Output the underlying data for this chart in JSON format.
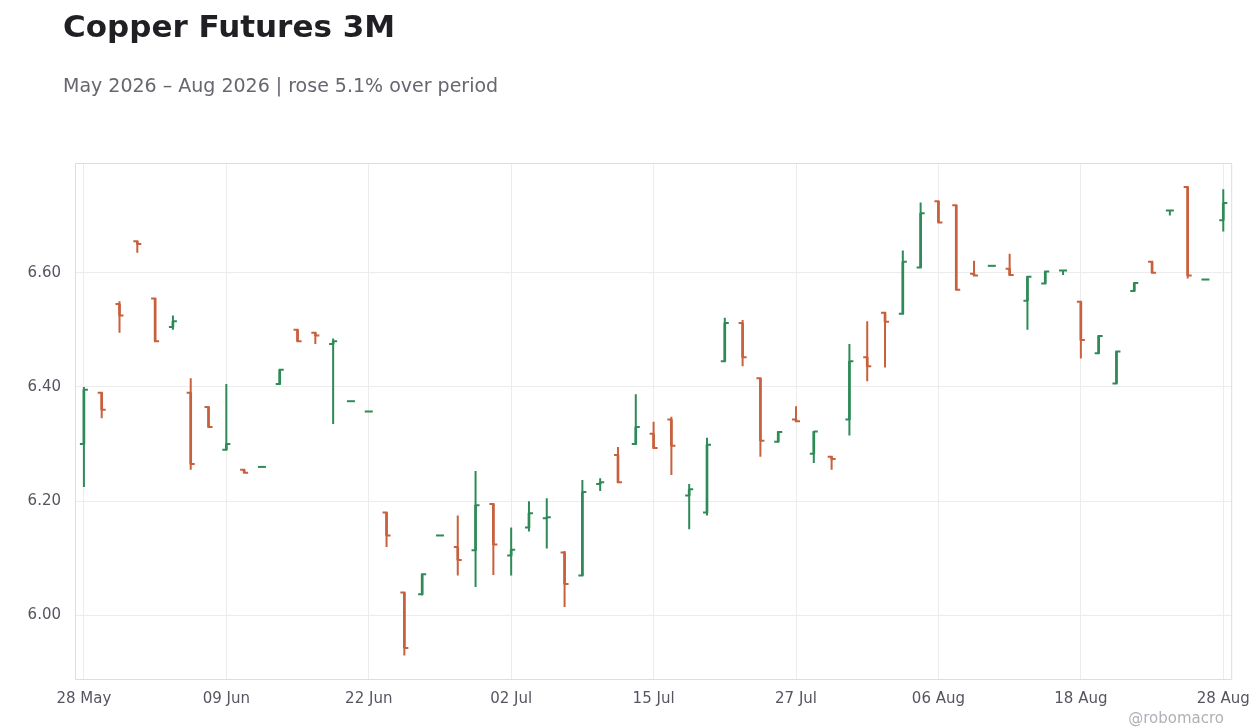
{
  "chart_data": {
    "type": "candlestick",
    "title": "Copper Futures 3M",
    "subtitle": "May 2026 – Aug 2026 | rose 5.1% over period",
    "annotations": [
      "@robomacro"
    ],
    "categories": [
      "28 May",
      null,
      null,
      null,
      null,
      null,
      null,
      null,
      "09 Jun",
      null,
      null,
      null,
      null,
      null,
      null,
      null,
      "22 Jun",
      null,
      null,
      null,
      null,
      null,
      null,
      null,
      "02 Jul",
      null,
      null,
      null,
      null,
      null,
      null,
      null,
      "15 Jul",
      null,
      null,
      null,
      null,
      null,
      null,
      null,
      "27 Jul",
      null,
      null,
      null,
      null,
      null,
      null,
      null,
      "06 Aug",
      null,
      null,
      null,
      null,
      null,
      null,
      null,
      "18 Aug",
      null,
      null,
      null,
      null,
      null,
      null,
      null,
      "28 Aug"
    ],
    "ohlc": [
      [
        6.3,
        6.4,
        6.225,
        6.395
      ],
      [
        6.39,
        6.39,
        6.345,
        6.36
      ],
      [
        6.545,
        6.55,
        6.495,
        6.525
      ],
      [
        6.655,
        6.655,
        6.635,
        6.65
      ],
      [
        6.555,
        6.555,
        6.48,
        6.48
      ],
      [
        6.505,
        6.525,
        6.5,
        6.515
      ],
      [
        6.39,
        6.415,
        6.255,
        6.265
      ],
      [
        6.365,
        6.365,
        6.33,
        6.33
      ],
      [
        6.29,
        6.405,
        6.29,
        6.3
      ],
      [
        6.255,
        6.255,
        6.248,
        6.25
      ],
      [
        6.26,
        6.26,
        6.26,
        6.26
      ],
      [
        6.405,
        6.43,
        6.405,
        6.43
      ],
      [
        6.5,
        6.5,
        6.48,
        6.48
      ],
      [
        6.495,
        6.495,
        6.475,
        6.49
      ],
      [
        6.475,
        6.485,
        6.335,
        6.48
      ],
      [
        6.375,
        6.375,
        6.375,
        6.375
      ],
      [
        6.357,
        6.357,
        6.357,
        6.357
      ],
      [
        6.18,
        6.18,
        6.12,
        6.14
      ],
      [
        6.04,
        6.04,
        5.93,
        5.943
      ],
      [
        6.037,
        6.072,
        6.035,
        6.072
      ],
      [
        6.14,
        6.14,
        6.14,
        6.14
      ],
      [
        6.12,
        6.175,
        6.07,
        6.097
      ],
      [
        6.114,
        6.253,
        6.05,
        6.193
      ],
      [
        6.195,
        6.195,
        6.071,
        6.124
      ],
      [
        6.105,
        6.154,
        6.07,
        6.115
      ],
      [
        6.154,
        6.2,
        6.147,
        6.179
      ],
      [
        6.17,
        6.205,
        6.117,
        6.172
      ],
      [
        6.11,
        6.113,
        6.015,
        6.055
      ],
      [
        6.07,
        6.237,
        6.07,
        6.216
      ],
      [
        6.23,
        6.24,
        6.218,
        6.233
      ],
      [
        6.281,
        6.295,
        6.233,
        6.233
      ],
      [
        6.3,
        6.387,
        6.3,
        6.33
      ],
      [
        6.318,
        6.339,
        6.293,
        6.293
      ],
      [
        6.343,
        6.348,
        6.246,
        6.297
      ],
      [
        6.21,
        6.23,
        6.151,
        6.221
      ],
      [
        6.18,
        6.311,
        6.175,
        6.299
      ],
      [
        6.445,
        6.521,
        6.445,
        6.512
      ],
      [
        6.512,
        6.517,
        6.436,
        6.452
      ],
      [
        6.415,
        6.415,
        6.278,
        6.306
      ],
      [
        6.304,
        6.321,
        6.304,
        6.321
      ],
      [
        6.343,
        6.366,
        6.34,
        6.34
      ],
      [
        6.283,
        6.323,
        6.267,
        6.322
      ],
      [
        6.278,
        6.278,
        6.255,
        6.274
      ],
      [
        6.343,
        6.475,
        6.315,
        6.445
      ],
      [
        6.452,
        6.515,
        6.41,
        6.436
      ],
      [
        6.53,
        6.53,
        6.434,
        6.514
      ],
      [
        6.528,
        6.639,
        6.528,
        6.619
      ],
      [
        6.609,
        6.723,
        6.609,
        6.704
      ],
      [
        6.725,
        6.725,
        6.688,
        6.688
      ],
      [
        6.718,
        6.718,
        6.57,
        6.57
      ],
      [
        6.598,
        6.621,
        6.595,
        6.595
      ],
      [
        6.612,
        6.612,
        6.612,
        6.612
      ],
      [
        6.607,
        6.633,
        6.596,
        6.596
      ],
      [
        6.551,
        6.593,
        6.5,
        6.593
      ],
      [
        6.581,
        6.602,
        6.581,
        6.602
      ],
      [
        6.604,
        6.604,
        6.596,
        6.604
      ],
      [
        6.549,
        6.549,
        6.45,
        6.482
      ],
      [
        6.459,
        6.489,
        6.459,
        6.489
      ],
      [
        6.406,
        6.462,
        6.406,
        6.462
      ],
      [
        6.568,
        6.582,
        6.568,
        6.582
      ],
      [
        6.619,
        6.619,
        6.6,
        6.6
      ],
      [
        6.709,
        6.709,
        6.7,
        6.709
      ],
      [
        6.75,
        6.75,
        6.59,
        6.595
      ],
      [
        6.588,
        6.588,
        6.588,
        6.588
      ],
      [
        6.692,
        6.746,
        6.672,
        6.722
      ]
    ],
    "colors": [
      "#2e8b57",
      "#c9603d",
      "#c9603d",
      "#c9603d",
      "#c9603d",
      "#2e8b57",
      "#c9603d",
      "#c9603d",
      "#2e8b57",
      "#c9603d",
      "#2e8b57",
      "#2e8b57",
      "#c9603d",
      "#c9603d",
      "#2e8b57",
      "#2e8b57",
      "#2e8b57",
      "#c9603d",
      "#c9603d",
      "#2e8b57",
      "#2e8b57",
      "#c9603d",
      "#2e8b57",
      "#c9603d",
      "#2e8b57",
      "#2e8b57",
      "#2e8b57",
      "#c9603d",
      "#2e8b57",
      "#2e8b57",
      "#c9603d",
      "#2e8b57",
      "#c9603d",
      "#c9603d",
      "#2e8b57",
      "#2e8b57",
      "#2e8b57",
      "#c9603d",
      "#c9603d",
      "#2e8b57",
      "#c9603d",
      "#2e8b57",
      "#c9603d",
      "#2e8b57",
      "#c9603d",
      "#c9603d",
      "#2e8b57",
      "#2e8b57",
      "#c9603d",
      "#c9603d",
      "#c9603d",
      "#2e8b57",
      "#c9603d",
      "#2e8b57",
      "#2e8b57",
      "#2e8b57",
      "#c9603d",
      "#2e8b57",
      "#2e8b57",
      "#2e8b57",
      "#c9603d",
      "#2e8b57",
      "#c9603d",
      "#2e8b57",
      "#2e8b57"
    ],
    "ylim": [
      5.887,
      6.792
    ],
    "yticks": [
      {
        "value": 6.0,
        "label": "6.00"
      },
      {
        "value": 6.2,
        "label": "6.20"
      },
      {
        "value": 6.4,
        "label": "6.40"
      },
      {
        "value": 6.6,
        "label": "6.60"
      }
    ],
    "grid": true
  }
}
